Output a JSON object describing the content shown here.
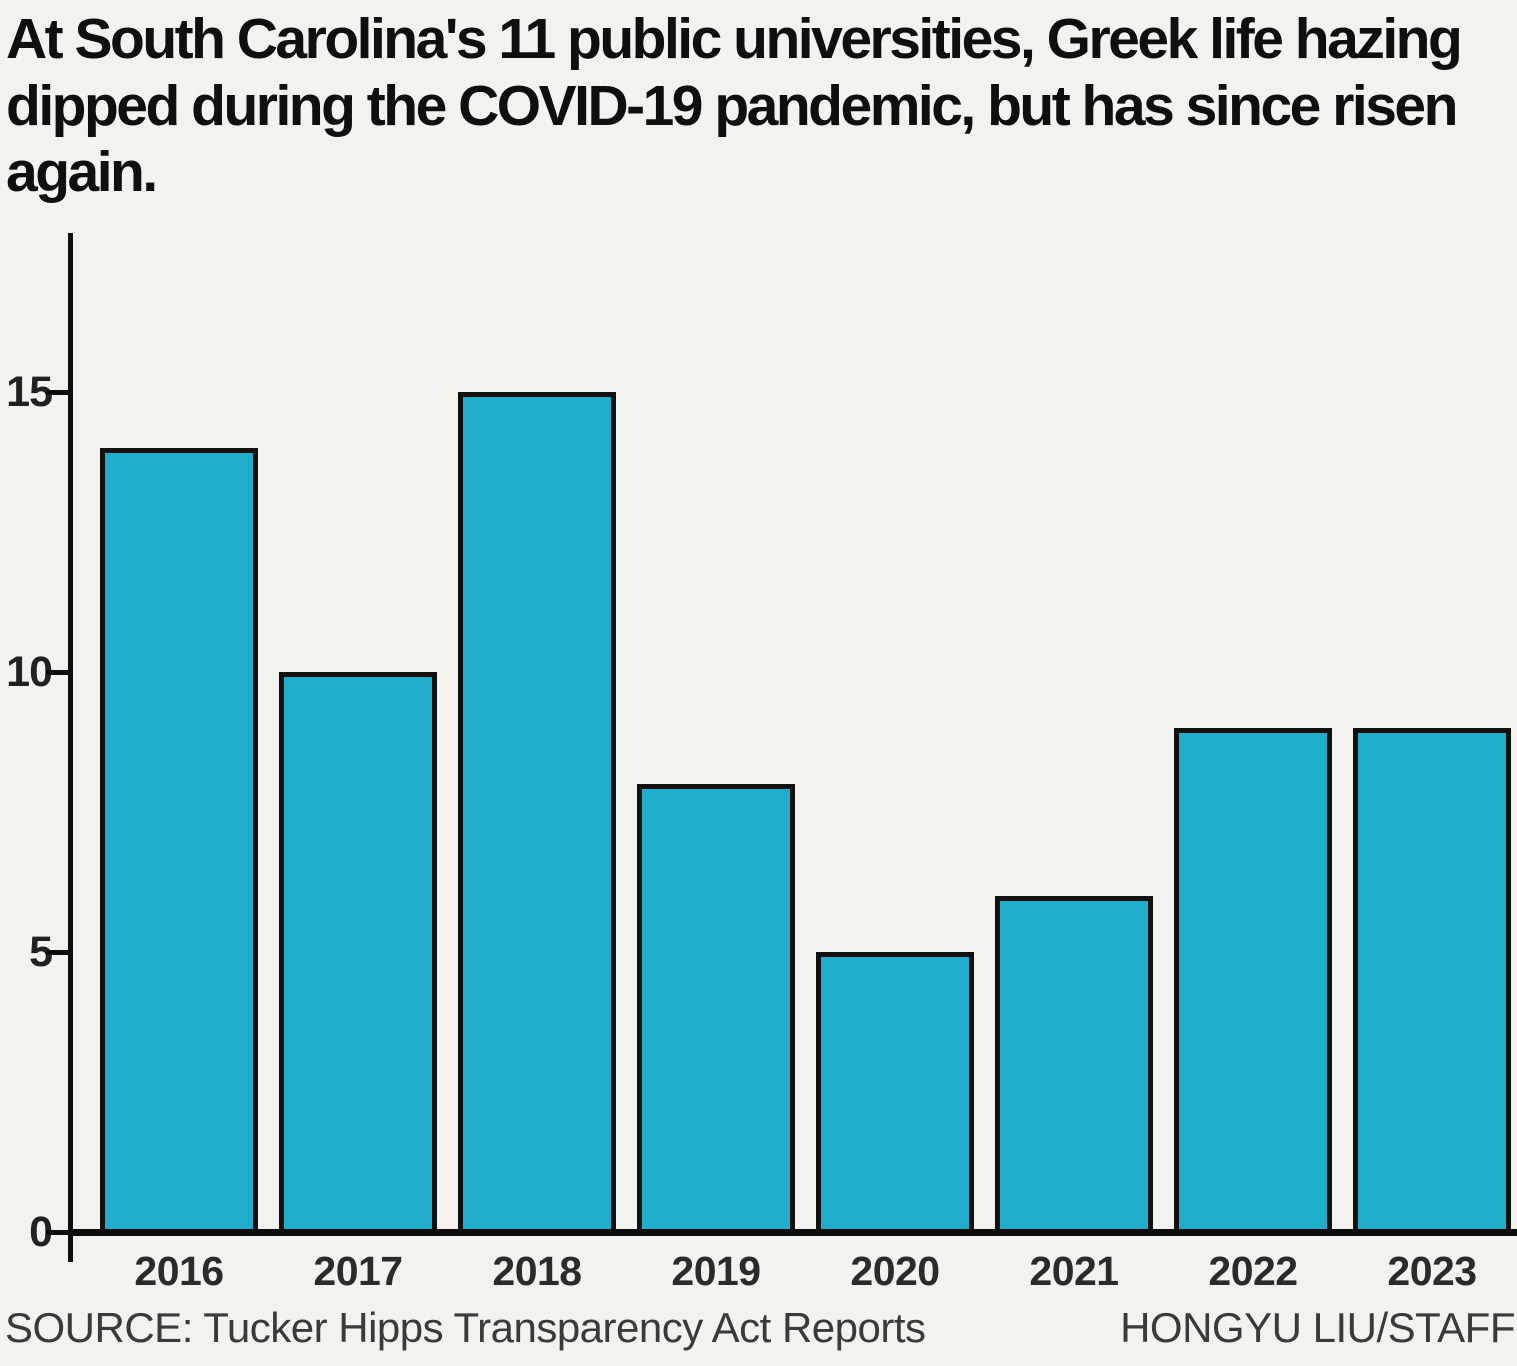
{
  "title": "At South Carolina's 11 public universities, Greek life hazing dipped during the COVID-19 pandemic, but has since risen again.",
  "footer": {
    "source": "SOURCE: Tucker Hipps Transparency Act Reports",
    "credit": "HONGYU LIU/STAFF"
  },
  "colors": {
    "background": "#f3f2ef",
    "bar_fill": "#20adcb",
    "bar_stroke": "#111111",
    "axis": "#0d0d0d",
    "text": "#0f0f0f"
  },
  "chart_data": {
    "type": "bar",
    "title": "At South Carolina's 11 public universities, Greek life hazing dipped during the COVID-19 pandemic, but has since risen again.",
    "categories": [
      "2016",
      "2017",
      "2018",
      "2019",
      "2020",
      "2021",
      "2022",
      "2023"
    ],
    "values": [
      14,
      10,
      15,
      8,
      5,
      6,
      9,
      9
    ],
    "xlabel": "",
    "ylabel": "",
    "ylim": [
      0,
      17.8
    ],
    "yticks": [
      0,
      5,
      10,
      15
    ],
    "grid": false,
    "legend": false,
    "source": "Tucker Hipps Transparency Act Reports"
  }
}
